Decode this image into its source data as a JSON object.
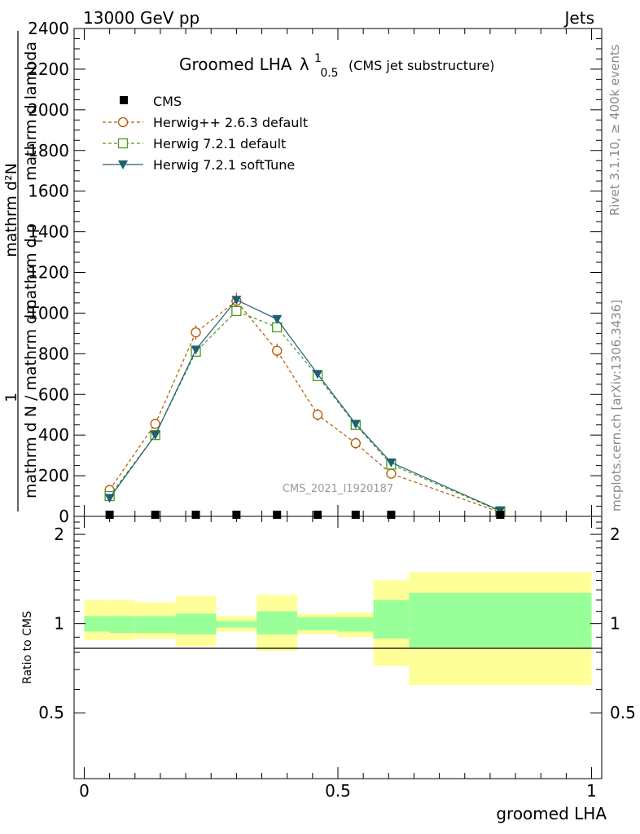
{
  "header": {
    "left": "13000 GeV pp",
    "right": "Jets"
  },
  "side": {
    "rivet": "Rivet 3.1.10, ≥ 400k events",
    "mcplots": "mcplots.cern.ch [arXiv:1306.3436]"
  },
  "chart_data": [
    {
      "type": "line",
      "panel": "main",
      "title_main": "Groomed LHA",
      "title_lambda": "λ",
      "title_sup": "1",
      "title_sub": "0.5",
      "title_suffix": "(CMS jet substructure)",
      "ylabel_numerator_1": "1",
      "ylabel_denominator_1": "mathrm d N / mathrm d p",
      "ylabel_numerator_2": "mathrm d²N",
      "ylabel_denominator_2": "mathrm d p",
      "ylabel_denominator_2b": "mathrm d lambda",
      "ylabel_sub_T": "T",
      "ylim": [
        0,
        2400
      ],
      "xlim": [
        -0.02,
        1.02
      ],
      "yticks": [
        0,
        200,
        400,
        600,
        800,
        1000,
        1200,
        1400,
        1600,
        1800,
        2000,
        2200,
        2400
      ],
      "ytick_labels": [
        "0",
        "200",
        "400",
        "600",
        "800",
        "1000",
        "1200",
        "1400",
        "1600",
        "1800",
        "2000",
        "2200",
        "2400"
      ],
      "watermark": "CMS_2021_I1920187",
      "legend": [
        {
          "name": "CMS",
          "marker": "square-filled",
          "color": "#000000"
        },
        {
          "name": "Herwig++ 2.6.3 default",
          "marker": "circle-open",
          "color": "#b35900"
        },
        {
          "name": "Herwig 7.2.1 default",
          "marker": "square-open",
          "color": "#4a9a17"
        },
        {
          "name": "Herwig 7.2.1 softTune",
          "marker": "triangle-down",
          "color": "#1f5f75"
        }
      ],
      "x": [
        0.05,
        0.14,
        0.22,
        0.3,
        0.38,
        0.46,
        0.535,
        0.605,
        0.82
      ],
      "series": [
        {
          "name": "CMS",
          "values": [
            0,
            0,
            0,
            0,
            0,
            0,
            0,
            0,
            0
          ]
        },
        {
          "name": "Herwig++ 2.6.3 default",
          "values": [
            130,
            455,
            905,
            1060,
            815,
            500,
            360,
            210,
            20
          ],
          "errors": [
            15,
            25,
            35,
            40,
            35,
            30,
            28,
            20,
            5
          ]
        },
        {
          "name": "Herwig 7.2.1 default",
          "values": [
            100,
            400,
            810,
            1010,
            930,
            690,
            450,
            255,
            25
          ]
        },
        {
          "name": "Herwig 7.2.1 softTune",
          "values": [
            90,
            400,
            820,
            1065,
            970,
            700,
            455,
            265,
            28
          ]
        }
      ]
    },
    {
      "type": "area",
      "panel": "ratio",
      "ylabel": "Ratio to CMS",
      "xlabel": "groomed LHA",
      "ylim": [
        0.3,
        2.3
      ],
      "xticks": [
        0,
        0.5,
        1
      ],
      "xtick_labels": [
        "0",
        "0.5",
        "1"
      ],
      "yticks": [
        0.5,
        1,
        2
      ],
      "ytick_labels": [
        "0.5",
        "1",
        "2"
      ],
      "bins": [
        {
          "x0": 0.0,
          "x1": 0.05,
          "inner": [
            0.94,
            1.06
          ],
          "outer": [
            0.88,
            1.2
          ]
        },
        {
          "x0": 0.05,
          "x1": 0.1,
          "inner": [
            0.93,
            1.06
          ],
          "outer": [
            0.88,
            1.2
          ]
        },
        {
          "x0": 0.1,
          "x1": 0.18,
          "inner": [
            0.93,
            1.06
          ],
          "outer": [
            0.89,
            1.18
          ]
        },
        {
          "x0": 0.18,
          "x1": 0.26,
          "inner": [
            0.92,
            1.08
          ],
          "outer": [
            0.84,
            1.24
          ]
        },
        {
          "x0": 0.26,
          "x1": 0.34,
          "inner": [
            0.97,
            1.02
          ],
          "outer": [
            0.94,
            1.06
          ]
        },
        {
          "x0": 0.34,
          "x1": 0.42,
          "inner": [
            0.92,
            1.1
          ],
          "outer": [
            0.81,
            1.25
          ]
        },
        {
          "x0": 0.42,
          "x1": 0.5,
          "inner": [
            0.95,
            1.05
          ],
          "outer": [
            0.92,
            1.08
          ]
        },
        {
          "x0": 0.5,
          "x1": 0.57,
          "inner": [
            0.94,
            1.05
          ],
          "outer": [
            0.9,
            1.09
          ]
        },
        {
          "x0": 0.57,
          "x1": 0.64,
          "inner": [
            0.89,
            1.2
          ],
          "outer": [
            0.72,
            1.4
          ]
        },
        {
          "x0": 0.64,
          "x1": 1.0,
          "inner": [
            0.83,
            1.27
          ],
          "outer": [
            0.62,
            1.49
          ]
        }
      ],
      "colors": {
        "inner": "#99ff99",
        "outer": "#ffff99",
        "line": "#000000"
      }
    }
  ]
}
